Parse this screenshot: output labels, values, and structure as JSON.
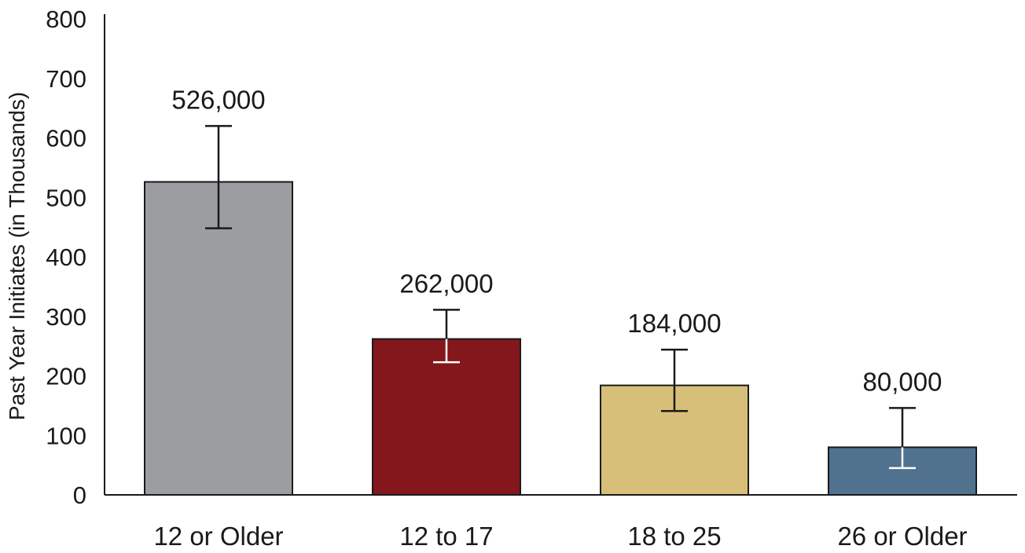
{
  "chart_data": {
    "type": "bar",
    "title": "",
    "xlabel": "",
    "ylabel": "Past Year Initiates (in Thousands)",
    "ylim": [
      0,
      800
    ],
    "yticks": [
      0,
      100,
      200,
      300,
      400,
      500,
      600,
      700,
      800
    ],
    "ytick_labels": [
      "0",
      "100",
      "200",
      "300",
      "400",
      "500",
      "600",
      "700",
      "800"
    ],
    "grid": false,
    "legend": "none",
    "categories": [
      "12 or Older",
      "12 to 17",
      "18 to 25",
      "26 or Older"
    ],
    "values": [
      526,
      262,
      184,
      80
    ],
    "data_labels": [
      "526,000",
      "262,000",
      "184,000",
      "80,000"
    ],
    "error_bars": [
      {
        "low": 448,
        "high": 620
      },
      {
        "low": 223,
        "high": 311
      },
      {
        "low": 141,
        "high": 244
      },
      {
        "low": 45,
        "high": 146
      }
    ],
    "colors": [
      "#9c9da1",
      "#83171b",
      "#d8bf79",
      "#50728f"
    ],
    "error_bar_inside_colors": [
      "#1a1a1a",
      "#ffffff",
      "#1a1a1a",
      "#ffffff"
    ]
  }
}
